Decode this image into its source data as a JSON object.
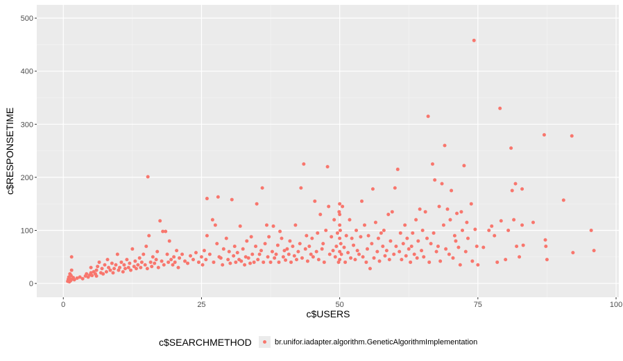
{
  "chart_data": {
    "type": "scatter",
    "title": "",
    "xlabel": "c$USERS",
    "ylabel": "c$RESPONSETIME",
    "xlim": [
      -4.8,
      100.5
    ],
    "ylim": [
      -26,
      525
    ],
    "xticks": [
      0,
      25,
      50,
      75,
      100
    ],
    "xtick_labels": [
      "0",
      "25",
      "50",
      "75",
      "100"
    ],
    "yticks": [
      0,
      100,
      200,
      300,
      400,
      500
    ],
    "ytick_labels": [
      "0",
      "100",
      "200",
      "300",
      "400",
      "500"
    ],
    "grid": true,
    "background": "#ebebeb",
    "point_color": "#f8766d",
    "legend": {
      "position": "bottom",
      "title": "c$SEARCHMETHOD",
      "entries": [
        "br.unifor.iadapter.algorithm.GeneticAlgorithmImplementation"
      ]
    },
    "series": [
      {
        "name": "br.unifor.iadapter.algorithm.GeneticAlgorithmImplementation",
        "points": [
          [
            0.8,
            4
          ],
          [
            0.9,
            8
          ],
          [
            1,
            12
          ],
          [
            1,
            6
          ],
          [
            1.1,
            3
          ],
          [
            1.2,
            18
          ],
          [
            1.2,
            9
          ],
          [
            1.3,
            5
          ],
          [
            1.4,
            15
          ],
          [
            1.5,
            25
          ],
          [
            1.5,
            50
          ],
          [
            1.6,
            8
          ],
          [
            1.8,
            11
          ],
          [
            2,
            7
          ],
          [
            2.5,
            10
          ],
          [
            3,
            12
          ],
          [
            3.5,
            9
          ],
          [
            4,
            14
          ],
          [
            4.2,
            18
          ],
          [
            4.5,
            12
          ],
          [
            4.8,
            16
          ],
          [
            5,
            20
          ],
          [
            5,
            30
          ],
          [
            5.2,
            15
          ],
          [
            5.5,
            22
          ],
          [
            5.8,
            18
          ],
          [
            6,
            25
          ],
          [
            6,
            14
          ],
          [
            6.2,
            32
          ],
          [
            6.5,
            40
          ],
          [
            6.8,
            20
          ],
          [
            7,
            28
          ],
          [
            7.2,
            18
          ],
          [
            7.5,
            35
          ],
          [
            7.8,
            22
          ],
          [
            8,
            45
          ],
          [
            8.2,
            30
          ],
          [
            8.5,
            25
          ],
          [
            8.8,
            38
          ],
          [
            9,
            20
          ],
          [
            9.2,
            28
          ],
          [
            9.5,
            35
          ],
          [
            9.8,
            55
          ],
          [
            10,
            25
          ],
          [
            10.2,
            30
          ],
          [
            10.5,
            40
          ],
          [
            10.8,
            22
          ],
          [
            11,
            35
          ],
          [
            11.2,
            28
          ],
          [
            11.5,
            45
          ],
          [
            11.8,
            30
          ],
          [
            12,
            38
          ],
          [
            12.2,
            25
          ],
          [
            12.5,
            65
          ],
          [
            12.8,
            32
          ],
          [
            13,
            42
          ],
          [
            13.2,
            28
          ],
          [
            13.5,
            35
          ],
          [
            13.8,
            48
          ],
          [
            14,
            30
          ],
          [
            14.2,
            40
          ],
          [
            14.5,
            55
          ],
          [
            14.8,
            35
          ],
          [
            15,
            70
          ],
          [
            15.2,
            28
          ],
          [
            15.3,
            201
          ],
          [
            15.5,
            90
          ],
          [
            15.8,
            40
          ],
          [
            16,
            32
          ],
          [
            16.2,
            50
          ],
          [
            16.5,
            38
          ],
          [
            16.8,
            45
          ],
          [
            17,
            60
          ],
          [
            17.2,
            30
          ],
          [
            17.5,
            118
          ],
          [
            17.8,
            42
          ],
          [
            18,
            98
          ],
          [
            18.2,
            35
          ],
          [
            18.5,
            98
          ],
          [
            18.8,
            55
          ],
          [
            19,
            40
          ],
          [
            19.2,
            80
          ],
          [
            19.5,
            45
          ],
          [
            19.8,
            35
          ],
          [
            20,
            50
          ],
          [
            20.2,
            40
          ],
          [
            20.5,
            62
          ],
          [
            20.8,
            30
          ],
          [
            21,
            48
          ],
          [
            21.5,
            55
          ],
          [
            22,
            42
          ],
          [
            22.5,
            38
          ],
          [
            23,
            52
          ],
          [
            23.5,
            45
          ],
          [
            24,
            58
          ],
          [
            24.5,
            40
          ],
          [
            25,
            50
          ],
          [
            25.2,
            35
          ],
          [
            25.5,
            62
          ],
          [
            25.8,
            45
          ],
          [
            26,
            160
          ],
          [
            26,
            90
          ],
          [
            26.5,
            55
          ],
          [
            27,
            120
          ],
          [
            27.2,
            40
          ],
          [
            27.5,
            110
          ],
          [
            27.8,
            75
          ],
          [
            28,
            163
          ],
          [
            28.2,
            50
          ],
          [
            28.5,
            48
          ],
          [
            28.8,
            35
          ],
          [
            29,
            65
          ],
          [
            29.5,
            85
          ],
          [
            29.8,
            45
          ],
          [
            30,
            60
          ],
          [
            30.2,
            38
          ],
          [
            30.5,
            158
          ],
          [
            30.8,
            52
          ],
          [
            31,
            70
          ],
          [
            31.2,
            40
          ],
          [
            31.5,
            58
          ],
          [
            31.8,
            45
          ],
          [
            32,
            108
          ],
          [
            32.2,
            42
          ],
          [
            32.5,
            65
          ],
          [
            32.8,
            35
          ],
          [
            33,
            50
          ],
          [
            33.2,
            80
          ],
          [
            33.5,
            48
          ],
          [
            33.8,
            38
          ],
          [
            34,
            88
          ],
          [
            34.2,
            55
          ],
          [
            34.5,
            40
          ],
          [
            34.8,
            70
          ],
          [
            35,
            150
          ],
          [
            35.2,
            45
          ],
          [
            35.5,
            55
          ],
          [
            35.8,
            62
          ],
          [
            36,
            180
          ],
          [
            36.2,
            40
          ],
          [
            36.5,
            75
          ],
          [
            36.8,
            110
          ],
          [
            37,
            50
          ],
          [
            37.2,
            88
          ],
          [
            37.5,
            40
          ],
          [
            37.8,
            60
          ],
          [
            38,
            108
          ],
          [
            38.2,
            48
          ],
          [
            38.5,
            55
          ],
          [
            38.8,
            72
          ],
          [
            39,
            40
          ],
          [
            39.2,
            98
          ],
          [
            39.5,
            85
          ],
          [
            39.8,
            50
          ],
          [
            40,
            62
          ],
          [
            40.2,
            44
          ],
          [
            40.5,
            65
          ],
          [
            40.8,
            55
          ],
          [
            41,
            80
          ],
          [
            41.2,
            40
          ],
          [
            41.5,
            70
          ],
          [
            41.8,
            52
          ],
          [
            42,
            110
          ],
          [
            42.2,
            45
          ],
          [
            42.5,
            60
          ],
          [
            42.8,
            75
          ],
          [
            43,
            180
          ],
          [
            43.2,
            48
          ],
          [
            43.5,
            225
          ],
          [
            43.8,
            65
          ],
          [
            44,
            90
          ],
          [
            44.2,
            42
          ],
          [
            44.5,
            70
          ],
          [
            44.8,
            55
          ],
          [
            45,
            85
          ],
          [
            45.2,
            50
          ],
          [
            45.5,
            155
          ],
          [
            45.8,
            60
          ],
          [
            46,
            95
          ],
          [
            46.2,
            45
          ],
          [
            46.5,
            130
          ],
          [
            46.8,
            65
          ],
          [
            47,
            75
          ],
          [
            47.2,
            40
          ],
          [
            47.5,
            100
          ],
          [
            47.8,
            220
          ],
          [
            48,
            145
          ],
          [
            48.2,
            55
          ],
          [
            48.5,
            88
          ],
          [
            48.8,
            62
          ],
          [
            49,
            120
          ],
          [
            49.2,
            50
          ],
          [
            49.4,
            70
          ],
          [
            49.6,
            95
          ],
          [
            49.8,
            40
          ],
          [
            49.9,
            135
          ],
          [
            50,
            150
          ],
          [
            50,
            130
          ],
          [
            50,
            110
          ],
          [
            50,
            85
          ],
          [
            50,
            60
          ],
          [
            50,
            45
          ],
          [
            50.1,
            100
          ],
          [
            50.2,
            75
          ],
          [
            50.3,
            55
          ],
          [
            50.5,
            145
          ],
          [
            50.8,
            68
          ],
          [
            51,
            40
          ],
          [
            51.2,
            90
          ],
          [
            51.5,
            58
          ],
          [
            51.8,
            120
          ],
          [
            52,
            48
          ],
          [
            52.2,
            85
          ],
          [
            52.5,
            72
          ],
          [
            52.8,
            45
          ],
          [
            53,
            100
          ],
          [
            53.2,
            62
          ],
          [
            53.5,
            55
          ],
          [
            53.8,
            88
          ],
          [
            54,
            155
          ],
          [
            54.2,
            50
          ],
          [
            54.5,
            110
          ],
          [
            54.8,
            40
          ],
          [
            55,
            65
          ],
          [
            55.2,
            90
          ],
          [
            55.5,
            28
          ],
          [
            55.8,
            75
          ],
          [
            56,
            178
          ],
          [
            56.2,
            48
          ],
          [
            56.5,
            115
          ],
          [
            56.8,
            60
          ],
          [
            57,
            85
          ],
          [
            57.2,
            42
          ],
          [
            57.5,
            95
          ],
          [
            57.8,
            70
          ],
          [
            58,
            100
          ],
          [
            58.2,
            52
          ],
          [
            58.5,
            62
          ],
          [
            58.8,
            130
          ],
          [
            59,
            45
          ],
          [
            59.2,
            80
          ],
          [
            59.5,
            135
          ],
          [
            59.8,
            55
          ],
          [
            60,
            180
          ],
          [
            60.2,
            70
          ],
          [
            60.5,
            215
          ],
          [
            60.8,
            60
          ],
          [
            61,
            95
          ],
          [
            61.2,
            45
          ],
          [
            61.5,
            75
          ],
          [
            61.8,
            110
          ],
          [
            62,
            52
          ],
          [
            62.2,
            85
          ],
          [
            62.5,
            65
          ],
          [
            62.8,
            40
          ],
          [
            63,
            70
          ],
          [
            63.2,
            95
          ],
          [
            63.5,
            55
          ],
          [
            63.8,
            120
          ],
          [
            64,
            48
          ],
          [
            64.2,
            80
          ],
          [
            64.5,
            140
          ],
          [
            64.8,
            62
          ],
          [
            65,
            100
          ],
          [
            65.2,
            50
          ],
          [
            65.5,
            135
          ],
          [
            65.8,
            85
          ],
          [
            66,
            315
          ],
          [
            66.2,
            40
          ],
          [
            66.5,
            75
          ],
          [
            66.8,
            225
          ],
          [
            67,
            95
          ],
          [
            67.2,
            195
          ],
          [
            67.5,
            60
          ],
          [
            67.8,
            70
          ],
          [
            68,
            145
          ],
          [
            68.2,
            42
          ],
          [
            68.5,
            188
          ],
          [
            68.8,
            110
          ],
          [
            69,
            260
          ],
          [
            69.2,
            65
          ],
          [
            69.5,
            140
          ],
          [
            69.8,
            55
          ],
          [
            70,
            120
          ],
          [
            70.2,
            175
          ],
          [
            70.5,
            48
          ],
          [
            70.8,
            90
          ],
          [
            71,
            80
          ],
          [
            71.2,
            132
          ],
          [
            71.5,
            68
          ],
          [
            71.8,
            35
          ],
          [
            72,
            135
          ],
          [
            72.2,
            100
          ],
          [
            72.5,
            222
          ],
          [
            72.8,
            60
          ],
          [
            73,
            115
          ],
          [
            73.2,
            85
          ],
          [
            73.8,
            150
          ],
          [
            74,
            42
          ],
          [
            74.3,
            458
          ],
          [
            74.5,
            102
          ],
          [
            74.8,
            70
          ],
          [
            75,
            35
          ],
          [
            76,
            68
          ],
          [
            77,
            100
          ],
          [
            77.5,
            108
          ],
          [
            78,
            90
          ],
          [
            78.5,
            40
          ],
          [
            79,
            330
          ],
          [
            79.2,
            118
          ],
          [
            80,
            45
          ],
          [
            80.5,
            100
          ],
          [
            81,
            255
          ],
          [
            81.2,
            175
          ],
          [
            81.5,
            120
          ],
          [
            81.8,
            188
          ],
          [
            82,
            70
          ],
          [
            82.5,
            50
          ],
          [
            83,
            178
          ],
          [
            83,
            110
          ],
          [
            83.2,
            72
          ],
          [
            85,
            115
          ],
          [
            87,
            280
          ],
          [
            87.2,
            82
          ],
          [
            87.3,
            70
          ],
          [
            87.5,
            45
          ],
          [
            90.5,
            157
          ],
          [
            92,
            278
          ],
          [
            92.2,
            58
          ],
          [
            95.5,
            100
          ],
          [
            96,
            62
          ]
        ]
      }
    ]
  }
}
